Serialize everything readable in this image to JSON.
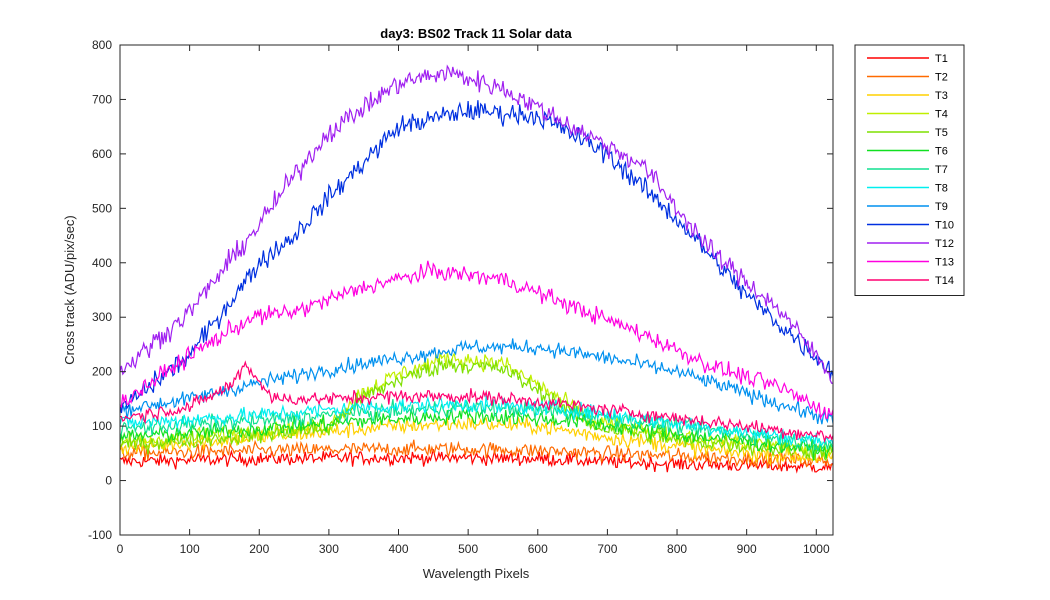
{
  "chart_data": {
    "type": "line",
    "title": "day3: BS02  Track 11 Solar data",
    "xlabel": "Wavelength Pixels",
    "ylabel": "Cross track (ADU/pix/sec)",
    "xlim": [
      0,
      1024
    ],
    "ylim": [
      -100,
      800
    ],
    "xticks": [
      0,
      100,
      200,
      300,
      400,
      500,
      600,
      700,
      800,
      900,
      1000
    ],
    "yticks": [
      -100,
      0,
      100,
      200,
      300,
      400,
      500,
      600,
      700,
      800
    ],
    "grid": false,
    "legend_position": "outside-top-right",
    "noisy": true,
    "series": [
      {
        "name": "T1",
        "color": "#ff0000",
        "x": [
          0,
          200,
          400,
          500,
          600,
          800,
          1024
        ],
        "y": [
          35,
          40,
          42,
          42,
          40,
          30,
          25
        ],
        "noise": 12
      },
      {
        "name": "T2",
        "color": "#ff6a00",
        "x": [
          0,
          200,
          400,
          500,
          600,
          800,
          1024
        ],
        "y": [
          50,
          55,
          58,
          58,
          55,
          45,
          35
        ],
        "noise": 13
      },
      {
        "name": "T3",
        "color": "#ffd000",
        "x": [
          0,
          150,
          300,
          400,
          500,
          600,
          700,
          850,
          1024
        ],
        "y": [
          60,
          75,
          90,
          100,
          105,
          100,
          80,
          55,
          40
        ],
        "noise": 14
      },
      {
        "name": "T4",
        "color": "#c0ef00",
        "x": [
          0,
          150,
          300,
          345,
          400,
          470,
          550,
          620,
          680,
          800,
          1024
        ],
        "y": [
          70,
          85,
          100,
          160,
          195,
          225,
          215,
          160,
          110,
          80,
          55
        ],
        "noise": 15
      },
      {
        "name": "T5",
        "color": "#7fe000",
        "x": [
          0,
          150,
          300,
          345,
          400,
          470,
          550,
          620,
          680,
          800,
          1024
        ],
        "y": [
          65,
          80,
          95,
          150,
          185,
          215,
          205,
          150,
          100,
          75,
          50
        ],
        "noise": 15
      },
      {
        "name": "T6",
        "color": "#10e020",
        "x": [
          0,
          200,
          350,
          500,
          650,
          800,
          1024
        ],
        "y": [
          80,
          95,
          110,
          120,
          110,
          85,
          55
        ],
        "noise": 14
      },
      {
        "name": "T7",
        "color": "#10e090",
        "x": [
          0,
          200,
          350,
          500,
          650,
          800,
          1024
        ],
        "y": [
          95,
          110,
          125,
          135,
          125,
          100,
          65
        ],
        "noise": 14
      },
      {
        "name": "T8",
        "color": "#00efef",
        "x": [
          0,
          200,
          350,
          500,
          650,
          800,
          1024
        ],
        "y": [
          105,
          120,
          135,
          140,
          130,
          105,
          70
        ],
        "noise": 14
      },
      {
        "name": "T9",
        "color": "#0090ef",
        "x": [
          0,
          100,
          200,
          300,
          400,
          500,
          600,
          700,
          800,
          900,
          1024
        ],
        "y": [
          130,
          150,
          180,
          205,
          225,
          245,
          245,
          225,
          200,
          160,
          110
        ],
        "noise": 13
      },
      {
        "name": "T10",
        "color": "#0030e0",
        "x": [
          0,
          100,
          200,
          250,
          300,
          400,
          500,
          600,
          700,
          800,
          900,
          1024
        ],
        "y": [
          130,
          230,
          400,
          450,
          520,
          650,
          680,
          670,
          600,
          480,
          340,
          200
        ],
        "noise": 18
      },
      {
        "name": "T12",
        "color": "#a020f0",
        "x": [
          0,
          100,
          200,
          250,
          300,
          400,
          470,
          550,
          650,
          750,
          850,
          950,
          1024
        ],
        "y": [
          200,
          310,
          470,
          560,
          640,
          730,
          750,
          720,
          650,
          580,
          420,
          310,
          190
        ],
        "noise": 18
      },
      {
        "name": "T13",
        "color": "#ff00e0",
        "x": [
          0,
          100,
          190,
          250,
          350,
          450,
          550,
          650,
          750,
          850,
          950,
          1024
        ],
        "y": [
          140,
          230,
          300,
          310,
          355,
          385,
          370,
          320,
          270,
          210,
          170,
          120
        ],
        "noise": 15
      },
      {
        "name": "T14",
        "color": "#ff0070",
        "x": [
          0,
          100,
          160,
          180,
          220,
          300,
          400,
          500,
          600,
          700,
          800,
          900,
          1024
        ],
        "y": [
          115,
          135,
          175,
          215,
          150,
          150,
          155,
          155,
          145,
          130,
          115,
          100,
          80
        ],
        "noise": 12
      }
    ]
  }
}
